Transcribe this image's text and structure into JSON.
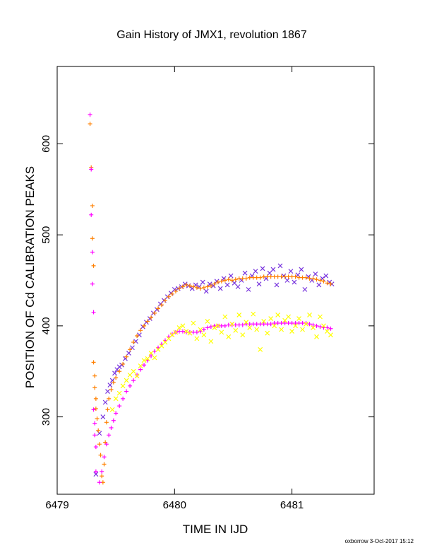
{
  "chart_data": {
    "type": "scatter",
    "title": "Gain History of JMX1, revolution 1867",
    "xlabel": "TIME IN IJD",
    "ylabel": "POSITION OF Cd CALIBRATION PEAKS",
    "xlim": [
      6479.0,
      6481.7
    ],
    "ylim": [
      215,
      685
    ],
    "x_ticks": [
      6479,
      6480,
      6481
    ],
    "x_tick_labels": [
      "6479",
      "6480",
      "6481"
    ],
    "y_ticks": [
      300,
      400,
      500,
      600
    ],
    "y_tick_labels": [
      "300",
      "400",
      "500",
      "600"
    ],
    "grid": false,
    "legend": "none",
    "footer": "oxborrow  3-Oct-2017 15:12",
    "series": [
      {
        "color": "#7733dd",
        "marker": "x",
        "x": [
          6479.33,
          6479.36,
          6479.39,
          6479.41,
          6479.43,
          6479.45,
          6479.47,
          6479.49,
          6479.51,
          6479.53,
          6479.55,
          6479.58,
          6479.61,
          6479.64,
          6479.67,
          6479.7,
          6479.73,
          6479.76,
          6479.79,
          6479.82,
          6479.85,
          6479.88,
          6479.91,
          6479.94,
          6479.97,
          6480.0,
          6480.03,
          6480.06,
          6480.09,
          6480.12,
          6480.15,
          6480.18,
          6480.21,
          6480.24,
          6480.27,
          6480.3,
          6480.33,
          6480.36,
          6480.39,
          6480.42,
          6480.45,
          6480.48,
          6480.51,
          6480.54,
          6480.57,
          6480.6,
          6480.63,
          6480.66,
          6480.69,
          6480.72,
          6480.75,
          6480.78,
          6480.81,
          6480.84,
          6480.87,
          6480.9,
          6480.93,
          6480.96,
          6480.99,
          6481.02,
          6481.05,
          6481.08,
          6481.11,
          6481.14,
          6481.17,
          6481.2,
          6481.23,
          6481.26,
          6481.29,
          6481.32,
          6481.34
        ],
        "y": [
          237,
          282,
          300,
          316,
          328,
          335,
          340,
          348,
          352,
          355,
          357,
          364,
          370,
          376,
          383,
          390,
          399,
          404,
          408,
          414,
          418,
          424,
          428,
          432,
          436,
          440,
          441,
          443,
          446,
          444,
          441,
          445,
          443,
          448,
          438,
          446,
          444,
          449,
          441,
          452,
          445,
          455,
          447,
          443,
          450,
          458,
          440,
          455,
          460,
          446,
          463,
          452,
          458,
          462,
          445,
          466,
          455,
          450,
          460,
          448,
          456,
          462,
          440,
          454,
          450,
          457,
          445,
          452,
          455,
          448,
          446
        ]
      },
      {
        "color": "#ff8000",
        "marker": "+",
        "x": [
          6479.28,
          6479.29,
          6479.3,
          6479.3,
          6479.31,
          6479.31,
          6479.32,
          6479.32,
          6479.33,
          6479.33,
          6479.34,
          6479.35,
          6479.36,
          6479.37,
          6479.38,
          6479.39,
          6479.4,
          6479.41,
          6479.42,
          6479.43,
          6479.44,
          6479.46,
          6479.48,
          6479.5,
          6479.53,
          6479.56,
          6479.59,
          6479.62,
          6479.65,
          6479.68,
          6479.71,
          6479.74,
          6479.77,
          6479.8,
          6479.83,
          6479.86,
          6479.89,
          6479.92,
          6479.95,
          6479.98,
          6480.01,
          6480.04,
          6480.07,
          6480.1,
          6480.13,
          6480.16,
          6480.19,
          6480.22,
          6480.25,
          6480.28,
          6480.31,
          6480.34,
          6480.37,
          6480.4,
          6480.43,
          6480.46,
          6480.49,
          6480.52,
          6480.55,
          6480.58,
          6480.61,
          6480.64,
          6480.67,
          6480.7,
          6480.73,
          6480.76,
          6480.79,
          6480.82,
          6480.85,
          6480.88,
          6480.91,
          6480.94,
          6480.97,
          6481.0,
          6481.03,
          6481.06,
          6481.09,
          6481.12,
          6481.15,
          6481.18,
          6481.21,
          6481.24,
          6481.27,
          6481.3,
          6481.33
        ],
        "y": [
          622,
          574,
          532,
          496,
          466,
          360,
          345,
          332,
          320,
          309,
          298,
          285,
          270,
          258,
          235,
          228,
          248,
          272,
          294,
          308,
          320,
          330,
          338,
          343,
          350,
          358,
          366,
          374,
          382,
          389,
          395,
          400,
          405,
          409,
          414,
          419,
          423,
          428,
          432,
          435,
          438,
          441,
          443,
          445,
          444,
          443,
          442,
          441,
          442,
          443,
          444,
          446,
          448,
          449,
          450,
          451,
          450,
          451,
          452,
          452,
          452,
          453,
          453,
          453,
          453,
          454,
          454,
          454,
          454,
          454,
          454,
          454,
          454,
          454,
          454,
          453,
          453,
          453,
          452,
          452,
          451,
          450,
          449,
          447,
          446
        ]
      },
      {
        "color": "#ff00ff",
        "marker": "+",
        "x": [
          6479.28,
          6479.29,
          6479.29,
          6479.3,
          6479.3,
          6479.31,
          6479.31,
          6479.32,
          6479.32,
          6479.33,
          6479.33,
          6479.36,
          6479.38,
          6479.4,
          6479.42,
          6479.44,
          6479.46,
          6479.48,
          6479.5,
          6479.53,
          6479.56,
          6479.59,
          6479.62,
          6479.65,
          6479.68,
          6479.71,
          6479.74,
          6479.77,
          6479.8,
          6479.83,
          6479.86,
          6479.89,
          6479.92,
          6479.95,
          6479.98,
          6480.01,
          6480.04,
          6480.07,
          6480.1,
          6480.13,
          6480.16,
          6480.19,
          6480.22,
          6480.25,
          6480.28,
          6480.31,
          6480.34,
          6480.37,
          6480.4,
          6480.43,
          6480.46,
          6480.49,
          6480.52,
          6480.55,
          6480.58,
          6480.61,
          6480.64,
          6480.67,
          6480.7,
          6480.73,
          6480.76,
          6480.79,
          6480.82,
          6480.85,
          6480.88,
          6480.91,
          6480.94,
          6480.97,
          6481.0,
          6481.03,
          6481.06,
          6481.09,
          6481.12,
          6481.15,
          6481.18,
          6481.21,
          6481.24,
          6481.27,
          6481.3,
          6481.33
        ],
        "y": [
          632,
          572,
          522,
          481,
          446,
          415,
          308,
          293,
          280,
          267,
          240,
          228,
          240,
          256,
          270,
          280,
          288,
          296,
          304,
          312,
          320,
          328,
          334,
          340,
          346,
          352,
          357,
          362,
          367,
          372,
          376,
          380,
          384,
          388,
          391,
          393,
          394,
          394,
          393,
          393,
          393,
          393,
          394,
          396,
          398,
          399,
          400,
          400,
          400,
          400,
          401,
          401,
          401,
          401,
          401,
          402,
          402,
          402,
          402,
          402,
          402,
          402,
          402,
          403,
          403,
          403,
          403,
          403,
          403,
          403,
          403,
          403,
          403,
          402,
          401,
          400,
          399,
          398,
          398,
          397
        ]
      },
      {
        "color": "#ffff00",
        "marker": "x",
        "x": [
          6479.47,
          6479.5,
          6479.53,
          6479.56,
          6479.59,
          6479.62,
          6479.65,
          6479.68,
          6479.71,
          6479.74,
          6479.77,
          6479.8,
          6479.83,
          6479.86,
          6479.89,
          6479.92,
          6479.95,
          6479.98,
          6480.01,
          6480.04,
          6480.07,
          6480.1,
          6480.13,
          6480.16,
          6480.19,
          6480.22,
          6480.25,
          6480.28,
          6480.31,
          6480.34,
          6480.37,
          6480.4,
          6480.43,
          6480.46,
          6480.49,
          6480.52,
          6480.55,
          6480.58,
          6480.61,
          6480.64,
          6480.67,
          6480.7,
          6480.73,
          6480.76,
          6480.79,
          6480.82,
          6480.85,
          6480.88,
          6480.91,
          6480.94,
          6480.97,
          6481.0,
          6481.03,
          6481.06,
          6481.09,
          6481.12,
          6481.15,
          6481.18,
          6481.21,
          6481.24,
          6481.27,
          6481.3,
          6481.33
        ],
        "y": [
          308,
          320,
          326,
          334,
          340,
          346,
          350,
          345,
          356,
          362,
          364,
          370,
          365,
          374,
          378,
          382,
          386,
          390,
          393,
          398,
          400,
          394,
          392,
          403,
          386,
          396,
          390,
          405,
          383,
          398,
          400,
          393,
          410,
          388,
          402,
          395,
          412,
          390,
          404,
          398,
          413,
          396,
          374,
          405,
          392,
          408,
          400,
          412,
          396,
          406,
          410,
          394,
          400,
          408,
          396,
          402,
          412,
          398,
          388,
          410,
          400,
          394,
          390
        ]
      }
    ]
  }
}
